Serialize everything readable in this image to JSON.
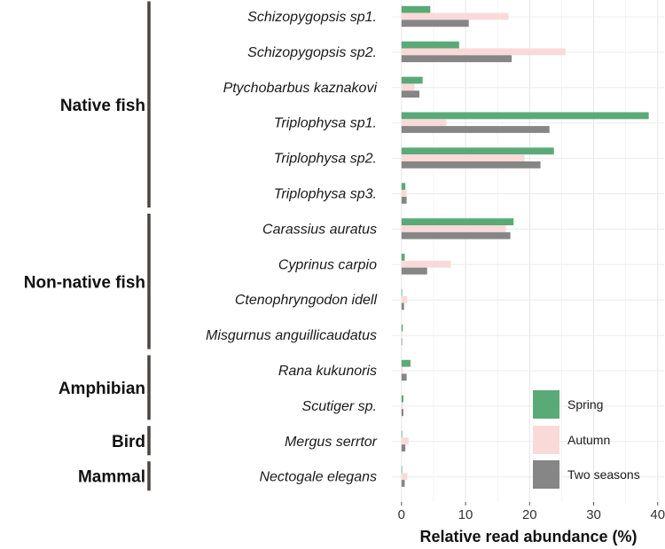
{
  "chart_data": {
    "type": "bar",
    "orientation": "horizontal",
    "xlabel": "Relative read abundance (%)",
    "xlim": [
      -1.5,
      41
    ],
    "xticks": [
      0,
      10,
      20,
      30,
      40
    ],
    "grid": true,
    "legend_position": "bottom-right",
    "categories": [
      "Schizopygopsis sp1.",
      "Schizopygopsis sp2.",
      "Ptychobarbus kaznakovi",
      "Triplophysa sp1.",
      "Triplophysa sp2.",
      "Triplophysa sp3.",
      "Carassius auratus",
      "Cyprinus carpio",
      "Ctenophryngodon idell",
      "Misgurnus anguillicaudatus",
      "Rana kukunoris",
      "Scutiger sp.",
      "Mergus serrtor",
      "Nectogale elegans"
    ],
    "groups": [
      {
        "name": "Native fish",
        "start": 0,
        "end": 5
      },
      {
        "name": "Non-native fish",
        "start": 6,
        "end": 9
      },
      {
        "name": "Amphibian",
        "start": 10,
        "end": 11
      },
      {
        "name": "Bird",
        "start": 12,
        "end": 12
      },
      {
        "name": "Mammal",
        "start": 13,
        "end": 13
      }
    ],
    "series": [
      {
        "name": "Spring",
        "color": "#5aaa77",
        "values": [
          4.5,
          9.0,
          3.3,
          38.6,
          23.8,
          0.6,
          17.5,
          0.5,
          0.1,
          0.2,
          1.4,
          0.3,
          0.1,
          0.1
        ]
      },
      {
        "name": "Autumn",
        "color": "#fadad8",
        "values": [
          16.7,
          25.6,
          2.0,
          7.0,
          19.2,
          0.8,
          16.3,
          7.7,
          0.9,
          0.1,
          0.2,
          0.2,
          1.1,
          0.9
        ]
      },
      {
        "name": "Two seasons",
        "color": "#868686",
        "values": [
          10.5,
          17.2,
          2.8,
          23.1,
          21.7,
          0.8,
          17.0,
          4.0,
          0.4,
          0.1,
          0.8,
          0.3,
          0.6,
          0.5
        ]
      }
    ]
  }
}
